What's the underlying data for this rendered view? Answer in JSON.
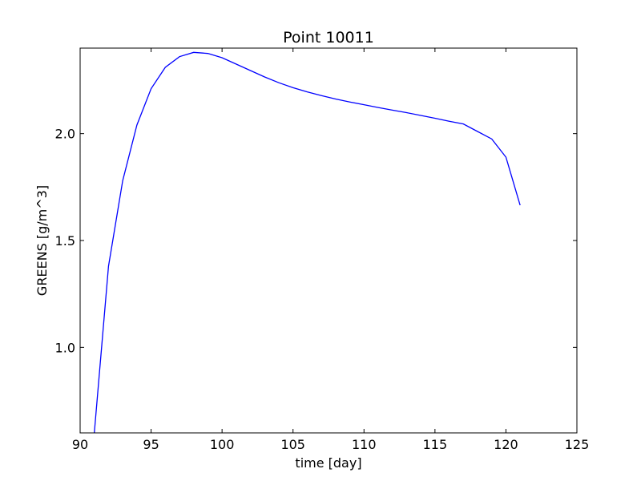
{
  "chart_data": {
    "type": "line",
    "title": "Point 10011",
    "xlabel": "time [day]",
    "ylabel": "GREENS [g/m^3]",
    "xlim": [
      90,
      125
    ],
    "ylim": [
      0.6,
      2.4
    ],
    "xticks": [
      90,
      95,
      100,
      105,
      110,
      115,
      120,
      125
    ],
    "yticks": [
      1.0,
      1.5,
      2.0
    ],
    "ytick_labels": [
      "1.0",
      "1.5",
      "2.0"
    ],
    "grid": false,
    "series_color": "#0000ff",
    "series": [
      {
        "x": [
          91,
          92,
          93,
          94,
          95,
          96,
          97,
          98,
          99,
          100,
          101,
          102,
          103,
          104,
          105,
          106,
          107,
          108,
          109,
          110,
          111,
          112,
          113,
          114,
          115,
          116,
          117,
          118,
          119,
          120,
          121
        ],
        "values": [
          0.6,
          1.38,
          1.78,
          2.04,
          2.21,
          2.31,
          2.36,
          2.38,
          2.375,
          2.355,
          2.325,
          2.295,
          2.265,
          2.238,
          2.215,
          2.195,
          2.178,
          2.162,
          2.148,
          2.135,
          2.122,
          2.11,
          2.098,
          2.085,
          2.072,
          2.058,
          2.045,
          2.01,
          1.975,
          1.89,
          1.665
        ]
      }
    ]
  }
}
